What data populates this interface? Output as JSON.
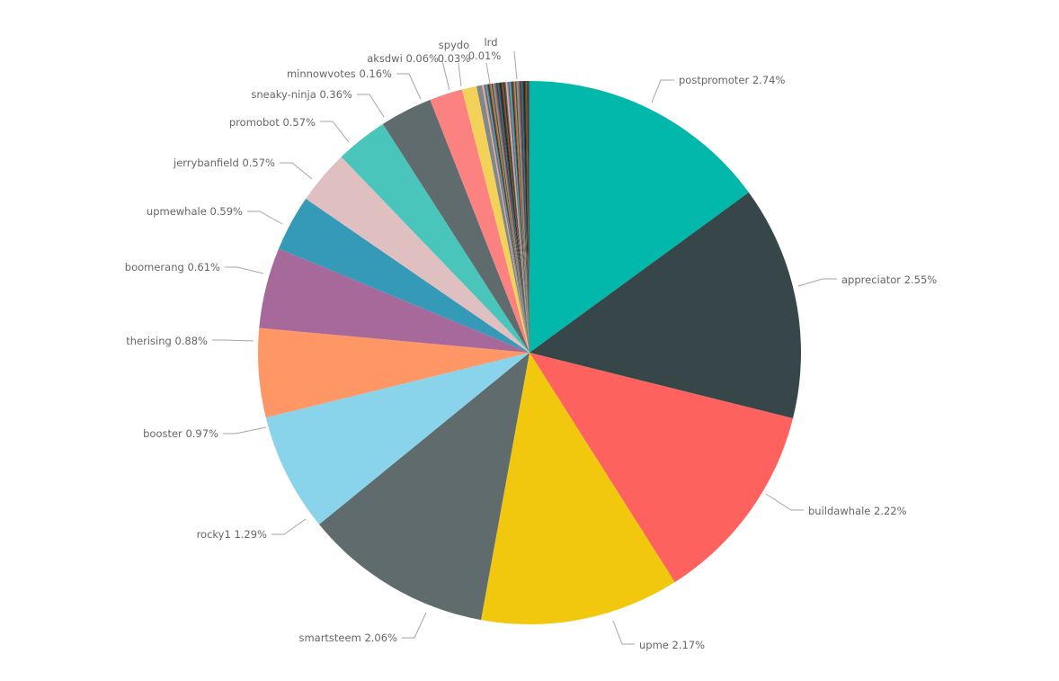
{
  "chart_data": {
    "type": "pie",
    "slices": [
      {
        "label": "postpromoter",
        "pct": "2.74%",
        "value": 2.74,
        "color": "#01B8AA"
      },
      {
        "label": "appreciator",
        "pct": "2.55%",
        "value": 2.55,
        "color": "#374649"
      },
      {
        "label": "buildawhale",
        "pct": "2.22%",
        "value": 2.22,
        "color": "#FD625E"
      },
      {
        "label": "upme",
        "pct": "2.17%",
        "value": 2.17,
        "color": "#F2C80F"
      },
      {
        "label": "smartsteem",
        "pct": "2.06%",
        "value": 2.06,
        "color": "#5F6B6D"
      },
      {
        "label": "rocky1",
        "pct": "1.29%",
        "value": 1.29,
        "color": "#8AD4EB"
      },
      {
        "label": "booster",
        "pct": "0.97%",
        "value": 0.97,
        "color": "#FE9666"
      },
      {
        "label": "therising",
        "pct": "0.88%",
        "value": 0.88,
        "color": "#A66999"
      },
      {
        "label": "boomerang",
        "pct": "0.61%",
        "value": 0.61,
        "color": "#3599B8"
      },
      {
        "label": "upmewhale",
        "pct": "0.59%",
        "value": 0.59,
        "color": "#DFBFBF"
      },
      {
        "label": "jerrybanfield",
        "pct": "0.57%",
        "value": 0.57,
        "color": "#4AC5BB"
      },
      {
        "label": "promobot",
        "pct": "0.57%",
        "value": 0.57,
        "color": "#5F6B6D"
      },
      {
        "label": "sneaky-ninja",
        "pct": "0.36%",
        "value": 0.36,
        "color": "#FB8281"
      },
      {
        "label": "minnowvotes",
        "pct": "0.16%",
        "value": 0.16,
        "color": "#F4D25A"
      },
      {
        "label": "aksdwi",
        "pct": "0.06%",
        "value": 0.06,
        "color": "#7F898A"
      },
      {
        "label": "spydo",
        "pct": "0.03%",
        "value": 0.03,
        "color": "#A4DDEE"
      },
      {
        "label": "lrd",
        "pct": "0.01%",
        "value": 0.01,
        "color": "#FDAB89"
      }
    ],
    "other_slice_colors": [
      "#FDAB89",
      "#B687AC",
      "#28738A",
      "#A78F8F",
      "#168980",
      "#293537",
      "#BB4A4A",
      "#B59525",
      "#475052",
      "#6A9FB0",
      "#BD7150",
      "#7B4F71",
      "#1B4D5C",
      "#706060",
      "#0F5C55",
      "#1C2325",
      "#7D3231",
      "#796419",
      "#303637",
      "#476A75"
    ]
  }
}
